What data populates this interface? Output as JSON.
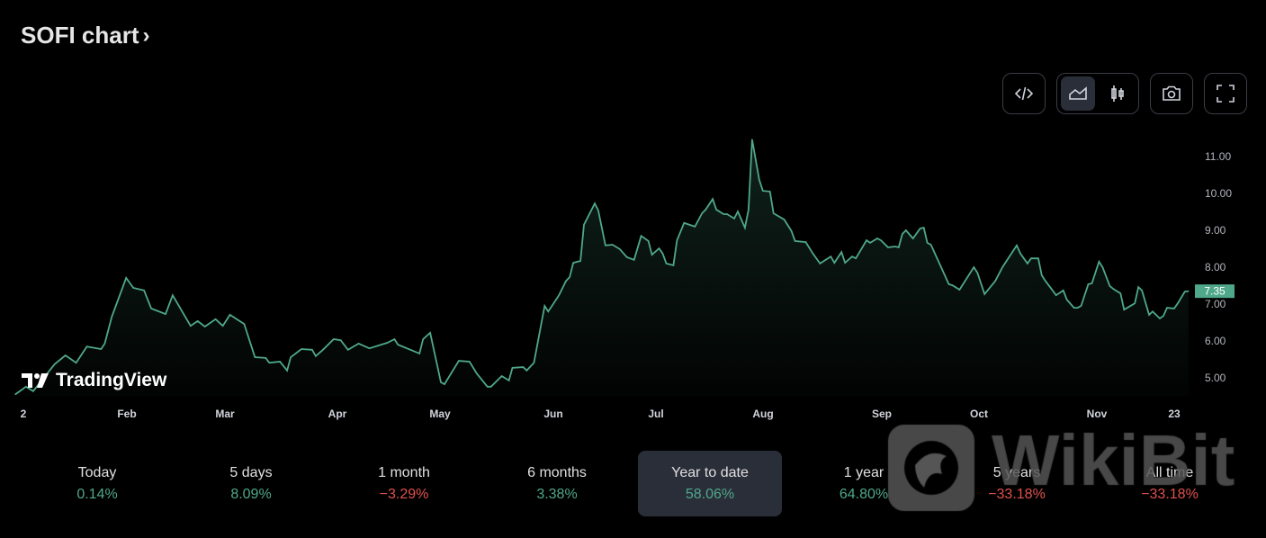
{
  "header": {
    "title": "SOFI chart",
    "chevron": "›"
  },
  "toolbar": {
    "embed_icon": "code-icon",
    "line_icon": "area-chart-icon",
    "candles_icon": "candlestick-icon",
    "snapshot_icon": "camera-icon",
    "fullscreen_icon": "fullscreen-icon",
    "active_chart_type": "area"
  },
  "branding": {
    "tradingview": "TradingView"
  },
  "watermark": {
    "text": "WikiBit"
  },
  "colors": {
    "line": "#4fa88a",
    "positive": "#4fa88a",
    "negative": "#e0504d",
    "last_price_bg": "#4fa88a"
  },
  "chart_data": {
    "type": "area",
    "title": "",
    "xlabel": "",
    "ylabel": "",
    "ylim": [
      4.6,
      11.8
    ],
    "yticks": [
      "11.00",
      "10.00",
      "9.00",
      "8.00",
      "7.00",
      "6.00",
      "5.00"
    ],
    "xticks": [
      "2",
      "Feb",
      "Mar",
      "Apr",
      "May",
      "Jun",
      "Jul",
      "Aug",
      "Sep",
      "Oct",
      "Nov",
      "23"
    ],
    "last_price": "7.35",
    "grid": false,
    "series": [
      {
        "points": [
          [
            "Jan 3",
            4.55
          ],
          [
            "Jan 6",
            4.76
          ],
          [
            "Jan 8",
            4.64
          ],
          [
            "Jan 14",
            5.37
          ],
          [
            "Jan 17",
            5.61
          ],
          [
            "Jan 20",
            5.41
          ],
          [
            "Jan 23",
            5.85
          ],
          [
            "Jan 27",
            5.78
          ],
          [
            "Jan 28",
            5.93
          ],
          [
            "Jan 30",
            6.66
          ],
          [
            "Feb 3",
            7.71
          ],
          [
            "Feb 5",
            7.44
          ],
          [
            "Feb 8",
            7.37
          ],
          [
            "Feb 10",
            6.88
          ],
          [
            "Feb 14",
            6.73
          ],
          [
            "Feb 16",
            7.24
          ],
          [
            "Feb 21",
            6.41
          ],
          [
            "Feb 23",
            6.54
          ],
          [
            "Feb 25",
            6.39
          ],
          [
            "Feb 28",
            6.59
          ],
          [
            "Mar 2",
            6.41
          ],
          [
            "Mar 4",
            6.71
          ],
          [
            "Mar 8",
            6.46
          ],
          [
            "Mar 11",
            5.56
          ],
          [
            "Mar 14",
            5.54
          ],
          [
            "Mar 15",
            5.41
          ],
          [
            "Mar 18",
            5.44
          ],
          [
            "Mar 20",
            5.2
          ],
          [
            "Mar 21",
            5.56
          ],
          [
            "Mar 24",
            5.78
          ],
          [
            "Mar 27",
            5.76
          ],
          [
            "Mar 28",
            5.59
          ],
          [
            "Mar 30",
            5.76
          ],
          [
            "Apr 2",
            6.05
          ],
          [
            "Apr 4",
            6.02
          ],
          [
            "Apr 6",
            5.76
          ],
          [
            "Apr 9",
            5.93
          ],
          [
            "Apr 12",
            5.8
          ],
          [
            "Apr 17",
            5.95
          ],
          [
            "Apr 19",
            6.05
          ],
          [
            "Apr 20",
            5.9
          ],
          [
            "Apr 26",
            5.66
          ],
          [
            "Apr 27",
            6.05
          ],
          [
            "Apr 29",
            6.22
          ],
          [
            "May 2",
            4.88
          ],
          [
            "May 3",
            4.83
          ],
          [
            "May 7",
            5.46
          ],
          [
            "May 10",
            5.44
          ],
          [
            "May 12",
            5.12
          ],
          [
            "May 15",
            4.76
          ],
          [
            "May 16",
            4.76
          ],
          [
            "May 19",
            5.05
          ],
          [
            "May 21",
            4.93
          ],
          [
            "May 22",
            5.27
          ],
          [
            "May 25",
            5.29
          ],
          [
            "May 26",
            5.2
          ],
          [
            "May 28",
            5.41
          ],
          [
            "May 31",
            6.95
          ],
          [
            "Jun 1",
            6.8
          ],
          [
            "Jun 4",
            7.24
          ],
          [
            "Jun 6",
            7.63
          ],
          [
            "Jun 7",
            7.73
          ],
          [
            "Jun 8",
            8.12
          ],
          [
            "Jun 10",
            8.17
          ],
          [
            "Jun 11",
            9.15
          ],
          [
            "Jun 14",
            9.73
          ],
          [
            "Jun 15",
            9.54
          ],
          [
            "Jun 17",
            8.59
          ],
          [
            "Jun 19",
            8.61
          ],
          [
            "Jun 21",
            8.49
          ],
          [
            "Jun 23",
            8.27
          ],
          [
            "Jun 25",
            8.2
          ],
          [
            "Jun 27",
            8.85
          ],
          [
            "Jun 29",
            8.71
          ],
          [
            "Jun 30",
            8.34
          ],
          [
            "Jul 2",
            8.51
          ],
          [
            "Jul 3",
            8.37
          ],
          [
            "Jul 4",
            8.1
          ],
          [
            "Jul 6",
            8.05
          ],
          [
            "Jul 7",
            8.73
          ],
          [
            "Jul 9",
            9.2
          ],
          [
            "Jul 12",
            9.1
          ],
          [
            "Jul 14",
            9.46
          ],
          [
            "Jul 15",
            9.56
          ],
          [
            "Jul 17",
            9.85
          ],
          [
            "Jul 18",
            9.56
          ],
          [
            "Jul 20",
            9.44
          ],
          [
            "Jul 21",
            9.44
          ],
          [
            "Jul 23",
            9.32
          ],
          [
            "Jul 24",
            9.51
          ],
          [
            "Jul 26",
            9.07
          ],
          [
            "Jul 27",
            9.56
          ],
          [
            "Jul 28",
            11.46
          ],
          [
            "Jul 30",
            10.37
          ],
          [
            "Jul 31",
            10.07
          ],
          [
            "Aug 2",
            10.05
          ],
          [
            "Aug 3",
            9.46
          ],
          [
            "Aug 6",
            9.29
          ],
          [
            "Aug 8",
            8.98
          ],
          [
            "Aug 9",
            8.71
          ],
          [
            "Aug 12",
            8.68
          ],
          [
            "Aug 14",
            8.37
          ],
          [
            "Aug 16",
            8.1
          ],
          [
            "Aug 19",
            8.29
          ],
          [
            "Aug 20",
            8.12
          ],
          [
            "Aug 22",
            8.41
          ],
          [
            "Aug 23",
            8.12
          ],
          [
            "Aug 25",
            8.29
          ],
          [
            "Aug 26",
            8.24
          ],
          [
            "Aug 29",
            8.73
          ],
          [
            "Aug 30",
            8.66
          ],
          [
            "Sep 1",
            8.78
          ],
          [
            "Sep 2",
            8.73
          ],
          [
            "Sep 4",
            8.54
          ],
          [
            "Sep 6",
            8.56
          ],
          [
            "Sep 7",
            8.54
          ],
          [
            "Sep 8",
            8.9
          ],
          [
            "Sep 9",
            9.0
          ],
          [
            "Sep 11",
            8.78
          ],
          [
            "Sep 13",
            9.05
          ],
          [
            "Sep 14",
            9.07
          ],
          [
            "Sep 15",
            8.66
          ],
          [
            "Sep 16",
            8.61
          ],
          [
            "Sep 21",
            7.54
          ],
          [
            "Sep 22",
            7.51
          ],
          [
            "Sep 24",
            7.39
          ],
          [
            "Sep 28",
            8.0
          ],
          [
            "Sep 29",
            7.85
          ],
          [
            "Oct 1",
            7.27
          ],
          [
            "Oct 4",
            7.63
          ],
          [
            "Oct 6",
            8.0
          ],
          [
            "Oct 10",
            8.59
          ],
          [
            "Oct 11",
            8.37
          ],
          [
            "Oct 13",
            8.1
          ],
          [
            "Oct 14",
            8.24
          ],
          [
            "Oct 16",
            8.24
          ],
          [
            "Oct 17",
            7.78
          ],
          [
            "Oct 18",
            7.63
          ],
          [
            "Oct 20",
            7.37
          ],
          [
            "Oct 21",
            7.24
          ],
          [
            "Oct 23",
            7.37
          ],
          [
            "Oct 24",
            7.12
          ],
          [
            "Oct 26",
            6.9
          ],
          [
            "Oct 27",
            6.9
          ],
          [
            "Oct 28",
            6.95
          ],
          [
            "Oct 30",
            7.54
          ],
          [
            "Oct 31",
            7.56
          ],
          [
            "Nov 2",
            8.15
          ],
          [
            "Nov 3",
            8.0
          ],
          [
            "Nov 5",
            7.49
          ],
          [
            "Nov 6",
            7.41
          ],
          [
            "Nov 8",
            7.29
          ],
          [
            "Nov 9",
            6.85
          ],
          [
            "Nov 12",
            7.02
          ],
          [
            "Nov 13",
            7.46
          ],
          [
            "Nov 14",
            7.37
          ],
          [
            "Nov 16",
            6.71
          ],
          [
            "Nov 17",
            6.8
          ],
          [
            "Nov 19",
            6.61
          ],
          [
            "Nov 20",
            6.68
          ],
          [
            "Nov 21",
            6.9
          ],
          [
            "Nov 23",
            6.88
          ],
          [
            "Nov 24",
            7.02
          ],
          [
            "Nov 26",
            7.34
          ],
          [
            "Nov 27",
            7.35
          ]
        ]
      }
    ]
  },
  "stats": [
    {
      "label": "Today",
      "value": "0.14%",
      "trend": "positive"
    },
    {
      "label": "5 days",
      "value": "8.09%",
      "trend": "positive"
    },
    {
      "label": "1 month",
      "value": "−3.29%",
      "trend": "negative"
    },
    {
      "label": "6 months",
      "value": "3.38%",
      "trend": "positive"
    },
    {
      "label": "Year to date",
      "value": "58.06%",
      "trend": "positive",
      "active": true
    },
    {
      "label": "1 year",
      "value": "64.80%",
      "trend": "positive"
    },
    {
      "label": "5 years",
      "value": "−33.18%",
      "trend": "negative"
    },
    {
      "label": "All time",
      "value": "−33.18%",
      "trend": "negative"
    }
  ]
}
